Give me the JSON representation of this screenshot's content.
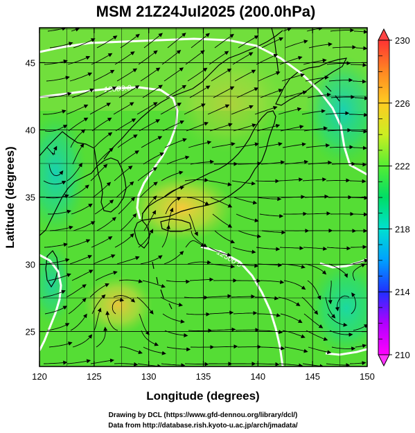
{
  "title": "MSM 21Z24Jul2025 (200.0hPa)",
  "x_axis": {
    "label": "Longitude (degrees)",
    "ticks": [
      "120",
      "125",
      "130",
      "135",
      "140",
      "145",
      "150"
    ],
    "range": [
      120,
      150
    ]
  },
  "y_axis": {
    "label": "Latitude  (degrees)",
    "ticks": [
      "25",
      "30",
      "35",
      "40",
      "45"
    ],
    "range": [
      22.4,
      47.6
    ]
  },
  "colorbar": {
    "ticks": [
      "210",
      "214",
      "218",
      "222",
      "226",
      "230"
    ],
    "range": [
      210,
      230
    ],
    "colors": [
      "#ff00ff",
      "#2020ff",
      "#00b0ff",
      "#00e0c0",
      "#00dd55",
      "#66ee33",
      "#ccee22",
      "#ffcc22",
      "#ff8822",
      "#ff3333"
    ]
  },
  "contour_labels": [
    "12300.0",
    "12300.0"
  ],
  "credits": {
    "line1": "Drawing by DCL (https://www.gfd-dennou.org/library/dcl/)",
    "line2": "Data from http://database.rish.kyoto-u.ac.jp/arch/jmadata/"
  }
}
